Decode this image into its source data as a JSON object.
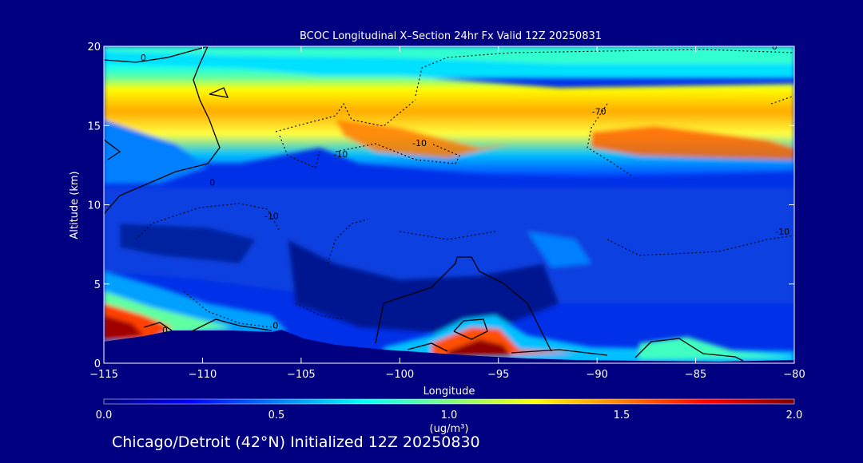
{
  "chart_data": {
    "type": "heatmap",
    "title": "BCOC Longitudinal X–Section 24hr  Fx Valid 12Z 20250831",
    "xlabel": "Longitude",
    "ylabel": "Altitude (km)",
    "xlim": [
      -115,
      -80
    ],
    "ylim": [
      0,
      20
    ],
    "x_ticks": [
      -115,
      -110,
      -105,
      -100,
      -95,
      -90,
      -85,
      -80
    ],
    "y_ticks": [
      0,
      5,
      10,
      15,
      20
    ],
    "colorbar": {
      "label": "(ug/m³)",
      "min": 0.0,
      "max": 2.0,
      "ticks": [
        0.0,
        0.5,
        1.0,
        1.5,
        2.0
      ],
      "tick_labels": [
        "0.0",
        "0.5",
        "1.0",
        "1.5",
        "2.0"
      ],
      "colors": [
        "#00007f",
        "#0000ff",
        "#0080ff",
        "#00ffff",
        "#80ff80",
        "#ffff00",
        "#ff8000",
        "#ff0000",
        "#7f0000"
      ]
    },
    "contour_labels": [
      {
        "text": "0",
        "lon": -113.0,
        "alt": 19.1
      },
      {
        "text": "0",
        "lon": -109.5,
        "alt": 11.2
      },
      {
        "text": "-10",
        "lon": -103.0,
        "alt": 13.0
      },
      {
        "text": "-10",
        "lon": -99.0,
        "alt": 13.7
      },
      {
        "text": "-10",
        "lon": -106.5,
        "alt": 9.1
      },
      {
        "text": "-70",
        "lon": -89.9,
        "alt": 15.7
      },
      {
        "text": "0",
        "lon": -81.0,
        "alt": 19.8
      },
      {
        "text": "0",
        "lon": -106.3,
        "alt": 2.2
      },
      {
        "text": "0",
        "lon": -111.9,
        "alt": 1.9
      },
      {
        "text": "-10",
        "lon": -80.6,
        "alt": 8.1
      }
    ]
  },
  "subtitle": "Chicago/Detroit (42°N) Initialized 12Z 20250830"
}
